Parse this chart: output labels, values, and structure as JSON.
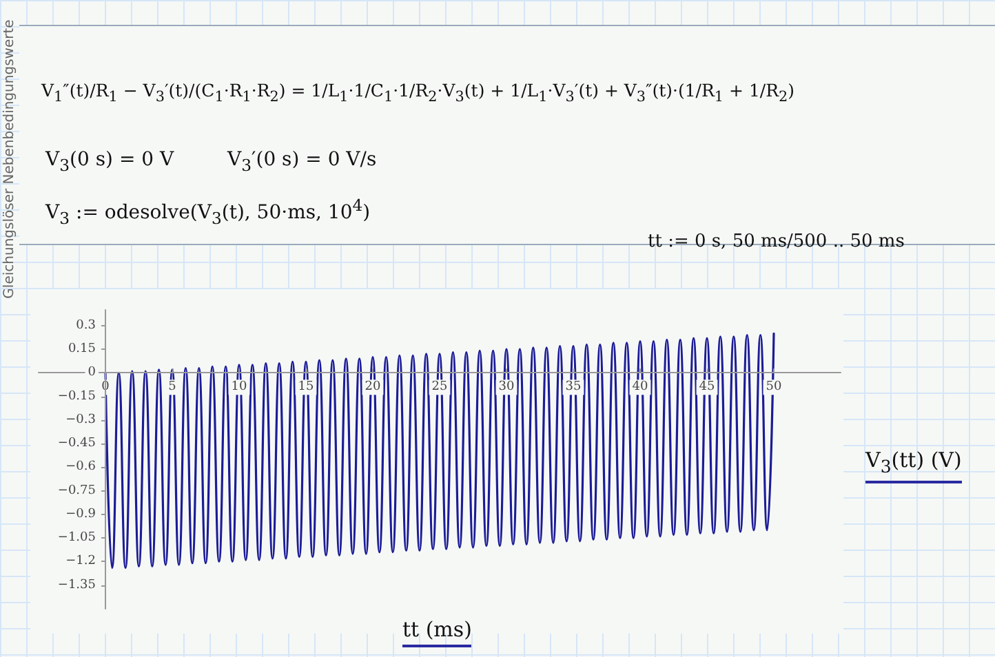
{
  "chart_data": {
    "type": "line",
    "xlabel": "tt (ms)",
    "ylabel": "V$_{3}$(tt) (V)",
    "annotations": [
      "Gleichungslöser Nebenbedingungswerte",
      "V$_{1}$″(t)/R$_{1}$ − V$_{3}$′(t)/(C$_{1}$·R$_{1}$·R$_{2}$) = 1/L$_{1}$·1/C$_{1}$·1/R$_{2}$·V$_{3}$(t) + 1/L$_{1}$·V$_{3}$′(t) + V$_{3}$″(t)·(1/R$_{1}$ + 1/R$_{2}$)",
      "V$_{3}$(0 s) = 0 V",
      "V$_{3}$′(0 s) = 0 V/s",
      "V$_{3}$ := odesolve(V$_{3}$(t), 50·ms, 10$^{4}$)",
      "tt := 0 s, 50 ms/500 .. 50 ms"
    ],
    "x": [
      0,
      0.5,
      1,
      1.5,
      2,
      2.5,
      3,
      3.5,
      4,
      4.5,
      5,
      5.5,
      6,
      6.5,
      7,
      7.5,
      8,
      8.5,
      9,
      9.5,
      10,
      10.5,
      11,
      11.5,
      12,
      12.5,
      13,
      13.5,
      14,
      14.5,
      15,
      15.5,
      16,
      16.5,
      17,
      17.5,
      18,
      18.5,
      19,
      19.5,
      20,
      20.5,
      21,
      21.5,
      22,
      22.5,
      23,
      23.5,
      24,
      24.5,
      25,
      25.5,
      26,
      26.5,
      27,
      27.5,
      28,
      28.5,
      29,
      29.5,
      30,
      30.5,
      31,
      31.5,
      32,
      32.5,
      33,
      33.5,
      34,
      34.5,
      35,
      35.5,
      36,
      36.5,
      37,
      37.5,
      38,
      38.5,
      39,
      39.5,
      40,
      40.5,
      41,
      41.5,
      42,
      42.5,
      43,
      43.5,
      44,
      44.5,
      45,
      45.5,
      46,
      46.5,
      47,
      47.5,
      48,
      48.5,
      49,
      49.5,
      50
    ],
    "series": [
      {
        "color": "#1c1c96",
        "values": [
          0,
          -1.24,
          0,
          -1.24,
          0.01,
          -1.23,
          0.01,
          -1.23,
          0.02,
          -1.22,
          0.02,
          -1.22,
          0.03,
          -1.21,
          0.03,
          -1.21,
          0.04,
          -1.2,
          0.04,
          -1.2,
          0.05,
          -1.19,
          0.05,
          -1.19,
          0.06,
          -1.18,
          0.06,
          -1.18,
          0.07,
          -1.17,
          0.07,
          -1.17,
          0.08,
          -1.16,
          0.08,
          -1.16,
          0.09,
          -1.15,
          0.09,
          -1.15,
          0.1,
          -1.14,
          0.1,
          -1.14,
          0.11,
          -1.13,
          0.11,
          -1.13,
          0.12,
          -1.12,
          0.12,
          -1.12,
          0.13,
          -1.11,
          0.13,
          -1.11,
          0.14,
          -1.1,
          0.14,
          -1.1,
          0.15,
          -1.09,
          0.15,
          -1.09,
          0.16,
          -1.08,
          0.16,
          -1.08,
          0.17,
          -1.07,
          0.17,
          -1.07,
          0.18,
          -1.06,
          0.18,
          -1.06,
          0.19,
          -1.05,
          0.19,
          -1.05,
          0.2,
          -1.04,
          0.2,
          -1.04,
          0.21,
          -1.03,
          0.21,
          -1.03,
          0.22,
          -1.02,
          0.22,
          -1.02,
          0.23,
          -1.01,
          0.23,
          -1.01,
          0.24,
          -1,
          0.24,
          -1,
          0.25
        ]
      }
    ],
    "xlim": [
      -5,
      55
    ],
    "ylim": [
      -1.5,
      0.4
    ],
    "xticks": [
      0,
      5,
      10,
      15,
      20,
      25,
      30,
      35,
      40,
      45,
      50
    ],
    "yticks": [
      {
        "value": -1.35,
        "label": "−1.35"
      },
      {
        "value": -1.2,
        "label": "−1.2"
      },
      {
        "value": -1.05,
        "label": "−1.05"
      },
      {
        "value": -0.9,
        "label": "−0.9"
      },
      {
        "value": -0.75,
        "label": "−0.75"
      },
      {
        "value": -0.6,
        "label": "−0.6"
      },
      {
        "value": -0.45,
        "label": "−0.45"
      },
      {
        "value": -0.3,
        "label": "−0.3"
      },
      {
        "value": -0.15,
        "label": "−0.15"
      },
      0,
      0.15,
      0.3
    ],
    "grid": false,
    "marker": "none",
    "line_style": "solid"
  }
}
